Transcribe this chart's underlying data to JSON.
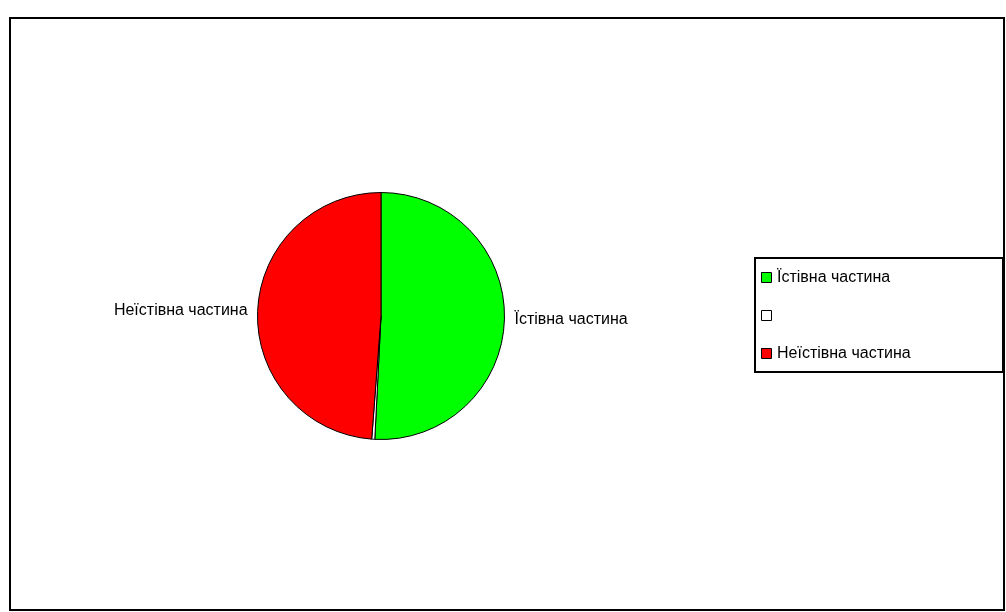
{
  "chart_data": {
    "type": "pie",
    "categories": [
      "Їстівна частина",
      null,
      "Неїстівна частина"
    ],
    "values": [
      50.8,
      0.4,
      48.8
    ],
    "colors": [
      "#00ff00",
      "#ffffff",
      "#ff0000"
    ],
    "legend": "right"
  }
}
